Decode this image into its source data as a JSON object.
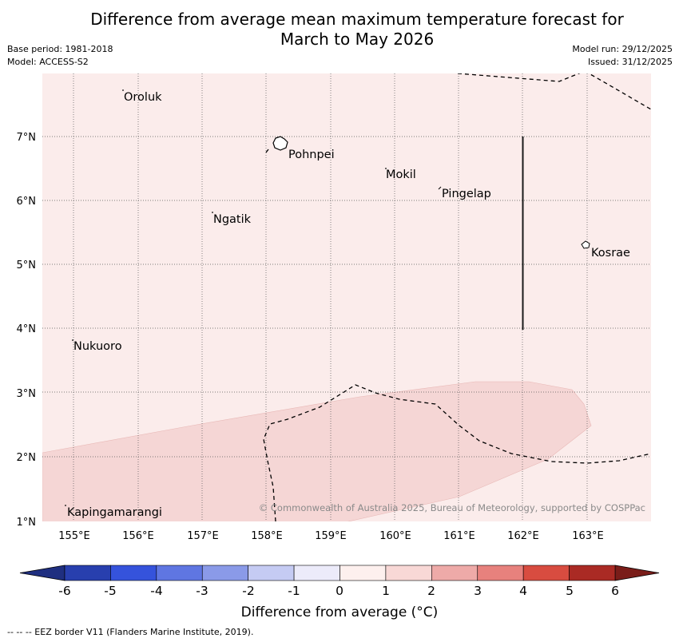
{
  "title": {
    "line1": "Difference from average mean maximum temperature forecast for",
    "line2": "March to May 2026"
  },
  "meta": {
    "base_period": "Base period: 1981-2018",
    "model": "Model: ACCESS-S2",
    "model_run": "Model run: 29/12/2025",
    "issued": "Issued: 31/12/2025"
  },
  "map": {
    "background_color": "#fbeceb",
    "anomaly_color": "#f5d6d5",
    "lon_labels": [
      "155°E",
      "156°E",
      "157°E",
      "158°E",
      "159°E",
      "160°E",
      "161°E",
      "162°E",
      "163°E"
    ],
    "lat_labels": [
      "7°N",
      "6°N",
      "5°N",
      "4°N",
      "3°N",
      "2°N",
      "1°N"
    ],
    "places": {
      "oroluk": "Oroluk",
      "pohnpei": "Pohnpei",
      "mokil": "Mokil",
      "pingelap": "Pingelap",
      "ngatik": "Ngatik",
      "kosrae": "Kosrae",
      "nukuoro": "Nukuoro",
      "kapingamarangi": "Kapingamarangi"
    },
    "copyright": "© Commonwealth of Australia 2025, Bureau of Meteorology, supported by COSPPac"
  },
  "colorbar": {
    "ticks": [
      "-6",
      "-5",
      "-4",
      "-3",
      "-2",
      "-1",
      "0",
      "1",
      "2",
      "3",
      "4",
      "5",
      "6"
    ],
    "colors": [
      "#283fae",
      "#3553dc",
      "#5f76e2",
      "#8a9ae8",
      "#c5cbf3",
      "#ecebfa",
      "#fdf0ee",
      "#f8d8d6",
      "#eeaaa8",
      "#e7817d",
      "#d84c40",
      "#aa2a24"
    ],
    "under_color": "#1f2f80",
    "over_color": "#7a1d19",
    "label": "Difference from average (°C)"
  },
  "legend_note": "--  --  -- EEZ border V11 (Flanders Marine Institute, 2019)."
}
